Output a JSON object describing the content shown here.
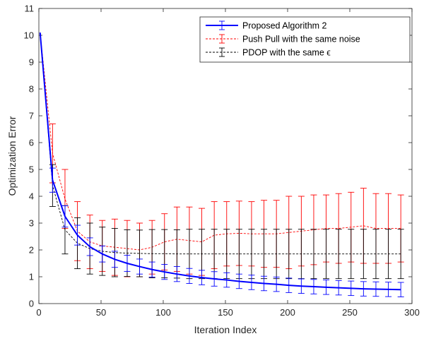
{
  "chart_data": {
    "type": "line",
    "title": "",
    "xlabel": "Iteration Index",
    "ylabel": "Optimization Error",
    "xlim": [
      0,
      300
    ],
    "ylim": [
      0,
      11
    ],
    "xticks": [
      0,
      50,
      100,
      150,
      200,
      250,
      300
    ],
    "yticks": [
      0,
      1,
      2,
      3,
      4,
      5,
      6,
      7,
      8,
      9,
      10,
      11
    ],
    "grid": false,
    "legend_position": "top-right",
    "x": [
      1,
      11,
      21,
      31,
      41,
      51,
      61,
      71,
      81,
      91,
      101,
      111,
      121,
      131,
      141,
      151,
      161,
      171,
      181,
      191,
      201,
      211,
      221,
      231,
      241,
      251,
      261,
      271,
      281,
      291
    ],
    "series": [
      {
        "name": "Proposed Algorithm 2",
        "color": "#0000ff",
        "style": "solid",
        "values": [
          10.1,
          4.6,
          3.25,
          2.55,
          2.12,
          1.85,
          1.65,
          1.5,
          1.38,
          1.27,
          1.18,
          1.1,
          1.03,
          0.97,
          0.92,
          0.88,
          0.83,
          0.79,
          0.75,
          0.72,
          0.68,
          0.65,
          0.63,
          0.61,
          0.59,
          0.57,
          0.55,
          0.54,
          0.53,
          0.52
        ],
        "error": [
          0.0,
          0.45,
          0.4,
          0.37,
          0.33,
          0.3,
          0.3,
          0.3,
          0.28,
          0.28,
          0.28,
          0.28,
          0.28,
          0.27,
          0.27,
          0.27,
          0.27,
          0.27,
          0.27,
          0.27,
          0.27,
          0.27,
          0.27,
          0.27,
          0.27,
          0.27,
          0.27,
          0.27,
          0.27,
          0.27
        ]
      },
      {
        "name": "Push Pull with the same noise",
        "color": "#ff0000",
        "style": "dashed",
        "values": [
          10.1,
          5.6,
          3.9,
          2.7,
          2.3,
          2.15,
          2.1,
          2.05,
          2.0,
          2.1,
          2.3,
          2.4,
          2.35,
          2.3,
          2.55,
          2.6,
          2.62,
          2.6,
          2.6,
          2.6,
          2.65,
          2.7,
          2.75,
          2.8,
          2.8,
          2.85,
          2.9,
          2.8,
          2.8,
          2.8
        ],
        "error": [
          0.0,
          1.1,
          1.1,
          1.1,
          1.0,
          0.95,
          1.05,
          1.05,
          1.0,
          1.0,
          1.05,
          1.2,
          1.25,
          1.25,
          1.25,
          1.2,
          1.2,
          1.2,
          1.25,
          1.25,
          1.35,
          1.3,
          1.3,
          1.25,
          1.3,
          1.3,
          1.4,
          1.3,
          1.3,
          1.25
        ]
      },
      {
        "name": "PDOP with the same ϵ",
        "color": "#000000",
        "style": "dashed",
        "values": [
          10.1,
          4.4,
          2.75,
          2.25,
          2.05,
          1.95,
          1.9,
          1.88,
          1.87,
          1.86,
          1.86,
          1.85,
          1.85,
          1.85,
          1.85,
          1.85,
          1.85,
          1.85,
          1.85,
          1.85,
          1.85,
          1.85,
          1.85,
          1.85,
          1.85,
          1.85,
          1.85,
          1.85,
          1.85,
          1.85
        ],
        "error": [
          0.0,
          0.78,
          0.9,
          0.95,
          0.95,
          0.9,
          0.9,
          0.87,
          0.87,
          0.9,
          0.9,
          0.9,
          0.92,
          0.92,
          0.92,
          0.92,
          0.92,
          0.92,
          0.92,
          0.92,
          0.92,
          0.92,
          0.92,
          0.92,
          0.92,
          0.92,
          0.92,
          0.92,
          0.92,
          0.92
        ]
      }
    ]
  }
}
